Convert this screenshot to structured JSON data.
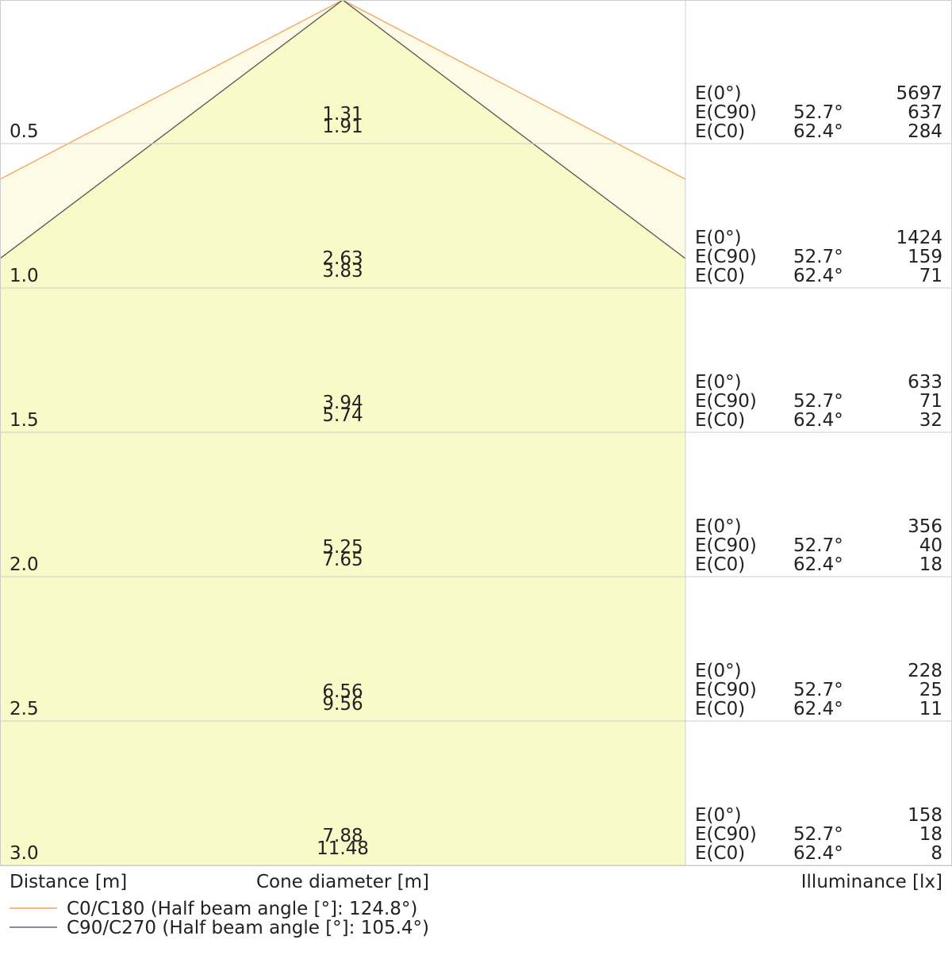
{
  "rows": [
    {
      "distance": "0.5",
      "cone_c90": "1.31",
      "cone_c0": "1.91",
      "e0": "5697",
      "ec90_angle": "52.7°",
      "ec90": "637",
      "ec0_angle": "62.4°",
      "ec0": "284"
    },
    {
      "distance": "1.0",
      "cone_c90": "2.63",
      "cone_c0": "3.83",
      "e0": "1424",
      "ec90_angle": "52.7°",
      "ec90": "159",
      "ec0_angle": "62.4°",
      "ec0": "71"
    },
    {
      "distance": "1.5",
      "cone_c90": "3.94",
      "cone_c0": "5.74",
      "e0": "633",
      "ec90_angle": "52.7°",
      "ec90": "71",
      "ec0_angle": "62.4°",
      "ec0": "32"
    },
    {
      "distance": "2.0",
      "cone_c90": "5.25",
      "cone_c0": "7.65",
      "e0": "356",
      "ec90_angle": "52.7°",
      "ec90": "40",
      "ec0_angle": "62.4°",
      "ec0": "18"
    },
    {
      "distance": "2.5",
      "cone_c90": "6.56",
      "cone_c0": "9.56",
      "e0": "228",
      "ec90_angle": "52.7°",
      "ec90": "25",
      "ec0_angle": "62.4°",
      "ec0": "11"
    },
    {
      "distance": "3.0",
      "cone_c90": "7.88",
      "cone_c0": "11.48",
      "e0": "158",
      "ec90_angle": "52.7°",
      "ec90": "18",
      "ec0_angle": "62.4°",
      "ec0": "8"
    }
  ],
  "labels": {
    "e0": "E(0°)",
    "ec90": "E(C90)",
    "ec0": "E(C0)"
  },
  "footer": {
    "distance": "Distance [m]",
    "cone": "Cone diameter [m]",
    "illuminance": "Illuminance [lx]"
  },
  "legend": [
    {
      "label": "C0/C180 (Half beam angle [°]: 124.8°)",
      "color": "#f5a35a"
    },
    {
      "label": "C90/C270 (Half beam angle [°]: 105.4°)",
      "color": "#666666"
    }
  ]
}
